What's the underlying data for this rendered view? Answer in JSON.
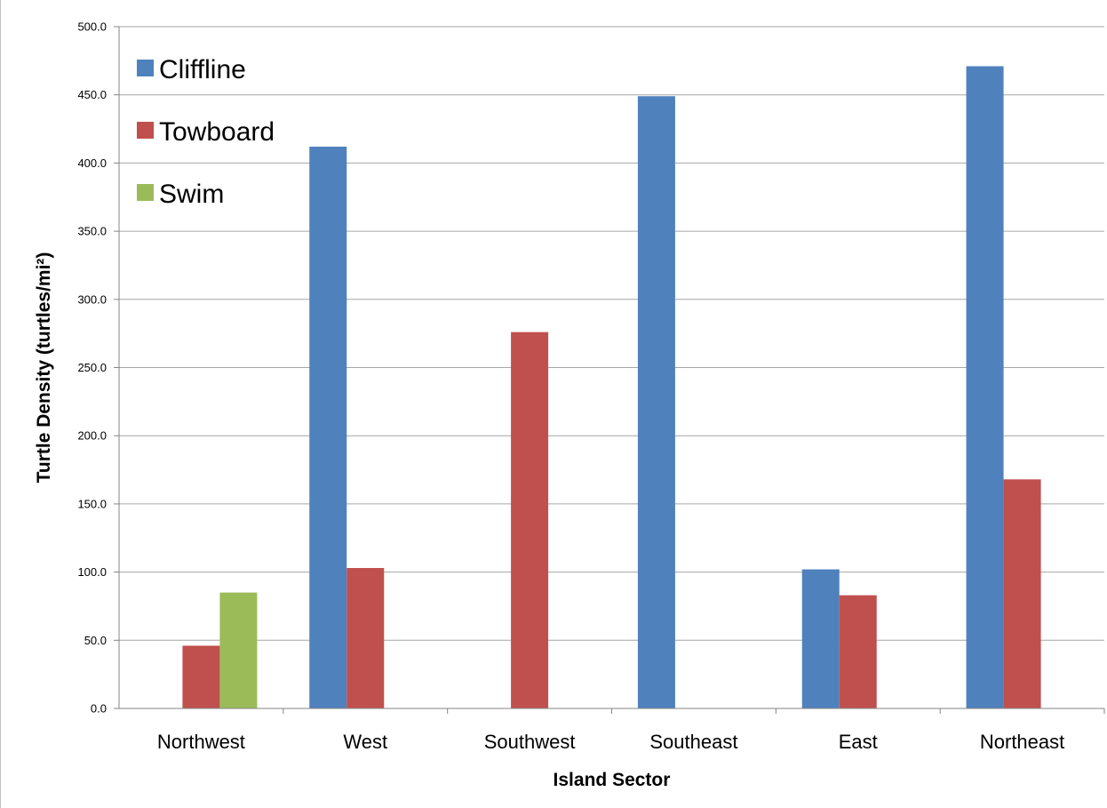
{
  "chart_data": {
    "type": "bar",
    "title": "",
    "xlabel": "Island Sector",
    "ylabel": "Turtle Density (turtles/mi²)",
    "ylim": [
      0,
      500
    ],
    "yticks": [
      "0.0",
      "50.0",
      "100.0",
      "150.0",
      "200.0",
      "250.0",
      "300.0",
      "350.0",
      "400.0",
      "450.0",
      "500.0"
    ],
    "grid": true,
    "legend_position": "top-left",
    "categories": [
      "Northwest",
      "West",
      "Southwest",
      "Southeast",
      "East",
      "Northeast"
    ],
    "series": [
      {
        "name": "Cliffline",
        "color": "#4f81bd",
        "values": [
          0,
          412,
          0,
          449,
          102,
          471
        ]
      },
      {
        "name": "Towboard",
        "color": "#c0504d",
        "values": [
          46,
          103,
          276,
          0,
          83,
          168
        ]
      },
      {
        "name": "Swim",
        "color": "#9bbb59",
        "values": [
          85,
          0,
          0,
          0,
          0,
          0
        ]
      }
    ]
  }
}
